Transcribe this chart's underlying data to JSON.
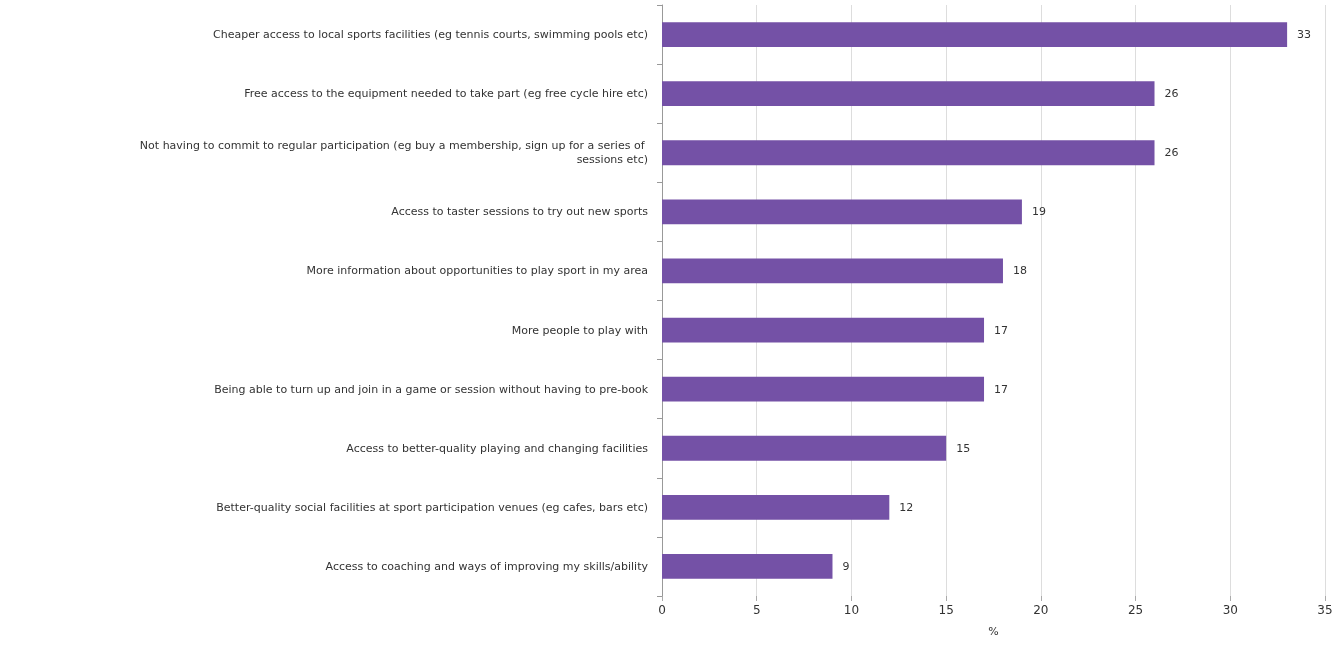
{
  "chart_data": {
    "type": "bar",
    "orientation": "horizontal",
    "xlabel": "%",
    "categories": [
      "Cheaper access to local sports facilities (eg tennis courts, swimming pools etc)",
      "Free access to the equipment needed to take part (eg free cycle hire etc)",
      "Not having to commit to regular participation (eg buy a membership, sign up for a series of sessions etc)",
      "Access to taster sessions to try out new sports",
      "More information about opportunities to play sport in my area",
      "More people to play with",
      "Being able to turn up and join in a game or session without having to pre-book",
      "Access to better-quality playing and changing facilities",
      "Better-quality social facilities at sport participation venues (eg cafes, bars etc)",
      "Access to coaching and ways of improving my skills/ability"
    ],
    "values": [
      33,
      26,
      26,
      19,
      18,
      17,
      17,
      15,
      12,
      9
    ],
    "color": "#7451a6",
    "xlim": [
      0,
      35
    ],
    "xticks": [
      0,
      5,
      10,
      15,
      20,
      25,
      30,
      35
    ],
    "grid": "x",
    "data_labels": true
  }
}
